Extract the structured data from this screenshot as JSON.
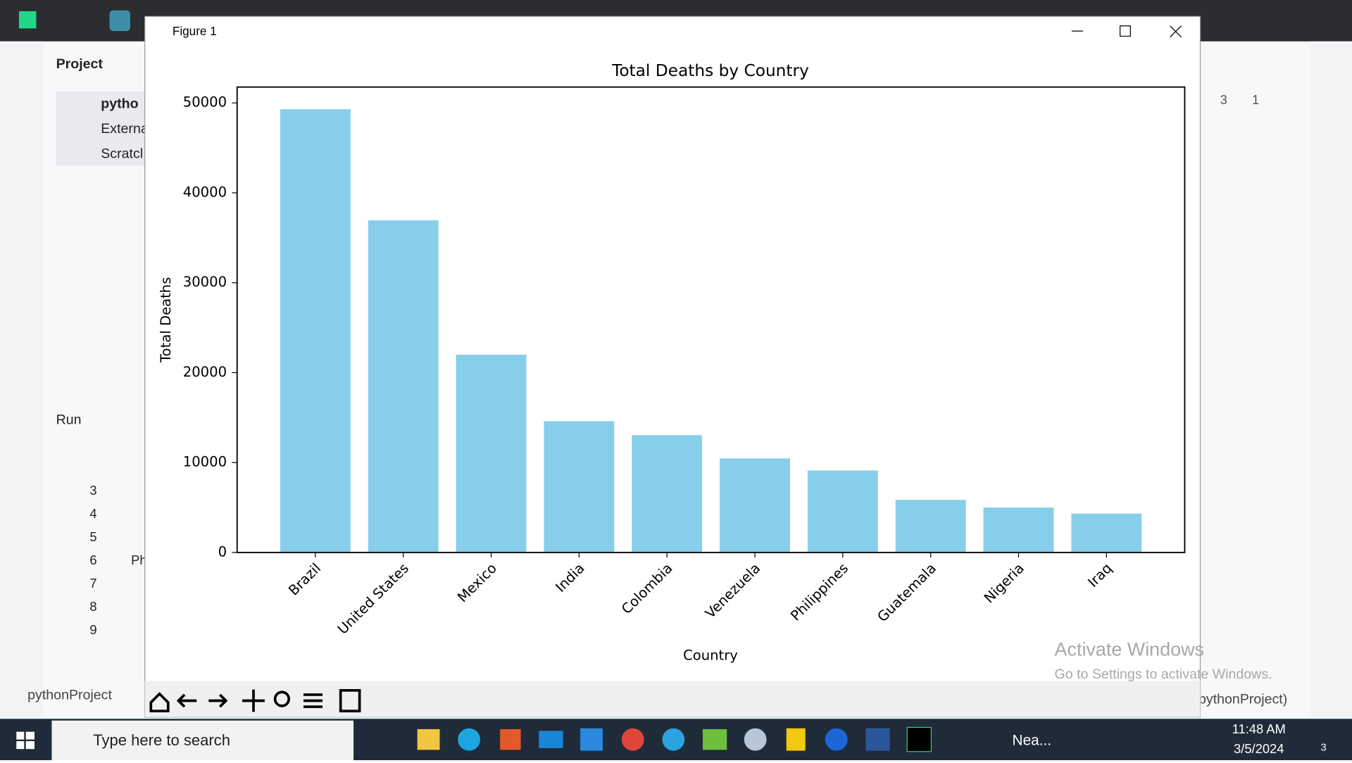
{
  "window": {
    "title": "Figure 1"
  },
  "ide": {
    "project": "Project",
    "tree": [
      "pytho",
      "Externa",
      "Scratcl"
    ],
    "run": "Run",
    "lines": [
      "3",
      "4",
      "5",
      "6",
      "7",
      "8",
      "9"
    ],
    "line_text": "Ph",
    "breadcrumb": "pythonProject",
    "status_right": "pythonProject)",
    "warnings": "3",
    "checks": "1"
  },
  "watermark": {
    "title": "Activate Windows",
    "subtitle": "Go to Settings to activate Windows."
  },
  "taskbar": {
    "search": "Type here to search",
    "weather": "Nea...",
    "time": "11:48 AM",
    "date": "3/5/2024",
    "notifications": "3"
  },
  "chart_data": {
    "type": "bar",
    "title": "Total Deaths by Country",
    "x_label": "Country",
    "y_label": "Total Deaths",
    "categories": [
      "Brazil",
      "United States",
      "Mexico",
      "India",
      "Colombia",
      "Venezuela",
      "Philippines",
      "Guatemala",
      "Nigeria",
      "Iraq"
    ],
    "values": [
      49300,
      36950,
      22000,
      14600,
      13050,
      10460,
      9120,
      5850,
      5000,
      4320
    ],
    "color": "#87ceeb",
    "ylim": [
      0,
      51765
    ],
    "yticks": [
      0,
      10000,
      20000,
      30000,
      40000,
      50000
    ],
    "grid": false
  }
}
